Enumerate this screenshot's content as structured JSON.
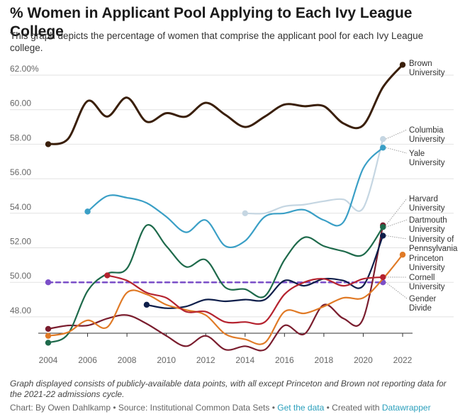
{
  "header": {
    "title": "% Women in Applicant Pool Applying to Each Ivy League College",
    "subtitle": "This graph depicts the percentage of women that comprise the applicant pool for each Ivy League college."
  },
  "footer": {
    "note": "Graph displayed consists of publicly-available data points, with all except Princeton and Brown not reporting data for the 2021-22 admissions cycle.",
    "credit_prefix": "Chart: By Owen Dahlkamp • Source: Institutional Common Data Sets • ",
    "get_data": "Get the data",
    "created_with": " • Created with ",
    "datawrapper": "Datawrapper"
  },
  "chart_data": {
    "type": "line",
    "title": "% Women in Applicant Pool Applying to Each Ivy League College",
    "xlabel": "",
    "ylabel": "",
    "xlim": [
      2004,
      2022
    ],
    "ylim": [
      46,
      63
    ],
    "x_ticks": [
      2004,
      2006,
      2008,
      2010,
      2012,
      2014,
      2016,
      2018,
      2020,
      2022
    ],
    "y_ticks": [
      {
        "value": 48,
        "label": "48.00"
      },
      {
        "value": 50,
        "label": "50.00"
      },
      {
        "value": 52,
        "label": "52.00"
      },
      {
        "value": 54,
        "label": "54.00"
      },
      {
        "value": 56,
        "label": "56.00"
      },
      {
        "value": 58,
        "label": "58.00"
      },
      {
        "value": 60,
        "label": "60.00"
      },
      {
        "value": 62,
        "label": "62.00%"
      }
    ],
    "grid": "horizontal",
    "series": [
      {
        "name": "Brown University",
        "label_lines": [
          "Brown",
          "University"
        ],
        "color": "#3a1f0a",
        "x": [
          2004,
          2005,
          2006,
          2007,
          2008,
          2009,
          2010,
          2011,
          2012,
          2013,
          2014,
          2015,
          2016,
          2017,
          2018,
          2019,
          2020,
          2021,
          2022
        ],
        "y": [
          58.0,
          58.3,
          60.5,
          59.6,
          60.7,
          59.3,
          59.8,
          59.6,
          60.4,
          59.7,
          59.0,
          59.6,
          60.3,
          60.2,
          60.2,
          59.2,
          59.1,
          61.3,
          62.6
        ]
      },
      {
        "name": "Columbia University",
        "label_lines": [
          "Columbia",
          "University"
        ],
        "color": "#c5d6e2",
        "x": [
          2014,
          2015,
          2016,
          2017,
          2018,
          2019,
          2020,
          2021
        ],
        "y": [
          54.0,
          54.0,
          54.4,
          54.5,
          54.7,
          54.8,
          54.3,
          58.3
        ]
      },
      {
        "name": "Yale University",
        "label_lines": [
          "Yale",
          "University"
        ],
        "color": "#3a9fc6",
        "x": [
          2006,
          2007,
          2008,
          2009,
          2010,
          2011,
          2012,
          2013,
          2014,
          2015,
          2016,
          2017,
          2018,
          2019,
          2020,
          2021
        ],
        "y": [
          54.1,
          55.0,
          54.9,
          54.6,
          53.8,
          52.9,
          53.6,
          52.1,
          52.4,
          53.8,
          54.0,
          54.2,
          53.6,
          53.5,
          56.6,
          57.8
        ]
      },
      {
        "name": "Harvard University",
        "label_lines": [
          "Harvard",
          "University"
        ],
        "color": "#7a1d2e",
        "x": [
          2004,
          2005,
          2006,
          2007,
          2008,
          2009,
          2010,
          2011,
          2012,
          2013,
          2014,
          2015,
          2016,
          2017,
          2018,
          2019,
          2020,
          2021
        ],
        "y": [
          47.3,
          47.5,
          47.5,
          47.9,
          48.1,
          47.6,
          46.9,
          46.3,
          46.9,
          46.1,
          46.3,
          46.1,
          47.5,
          47.0,
          48.7,
          47.9,
          47.9,
          53.3
        ]
      },
      {
        "name": "Dartmouth University",
        "label_lines": [
          "Dartmouth",
          "University"
        ],
        "color": "#1e6a4b",
        "x": [
          2004,
          2005,
          2006,
          2007,
          2008,
          2009,
          2010,
          2011,
          2012,
          2013,
          2014,
          2015,
          2016,
          2017,
          2018,
          2019,
          2020,
          2021
        ],
        "y": [
          46.5,
          47.0,
          49.5,
          50.5,
          50.8,
          53.3,
          52.1,
          50.9,
          51.3,
          49.7,
          49.6,
          49.2,
          51.3,
          52.6,
          52.1,
          51.8,
          51.6,
          53.2
        ]
      },
      {
        "name": "University of Pennsylvania",
        "label_lines": [
          "University of",
          "Pennsylvania"
        ],
        "color": "#0e1e4a",
        "x": [
          2009,
          2010,
          2011,
          2012,
          2013,
          2014,
          2015,
          2016,
          2017,
          2018,
          2019,
          2020,
          2021
        ],
        "y": [
          48.7,
          48.5,
          48.6,
          49.0,
          48.9,
          49.0,
          49.0,
          50.1,
          49.8,
          50.2,
          50.1,
          49.8,
          52.7
        ]
      },
      {
        "name": "Princeton University",
        "label_lines": [
          "Princeton",
          "University"
        ],
        "color": "#e07a26",
        "x": [
          2004,
          2005,
          2006,
          2007,
          2008,
          2009,
          2010,
          2011,
          2012,
          2013,
          2014,
          2015,
          2016,
          2017,
          2018,
          2019,
          2020,
          2021,
          2022
        ],
        "y": [
          46.9,
          47.1,
          47.8,
          47.4,
          49.4,
          49.3,
          48.7,
          48.4,
          48.1,
          47.0,
          46.7,
          46.5,
          48.3,
          48.2,
          48.6,
          49.1,
          49.1,
          50.2,
          51.6
        ]
      },
      {
        "name": "Cornell University",
        "label_lines": [
          "Cornell",
          "University"
        ],
        "color": "#b5232f",
        "x": [
          2007,
          2008,
          2009,
          2010,
          2011,
          2012,
          2013,
          2014,
          2015,
          2016,
          2017,
          2018,
          2019,
          2020,
          2021
        ],
        "y": [
          50.4,
          50.1,
          49.4,
          49.1,
          48.3,
          48.3,
          47.7,
          47.7,
          47.7,
          49.3,
          50.0,
          50.2,
          49.8,
          50.2,
          50.3
        ]
      },
      {
        "name": "Gender Divide",
        "label_lines": [
          "Gender",
          "Divide"
        ],
        "color": "#7b4fc8",
        "dashed": true,
        "x": [
          2004,
          2021
        ],
        "y": [
          50.0,
          50.0
        ]
      }
    ]
  }
}
